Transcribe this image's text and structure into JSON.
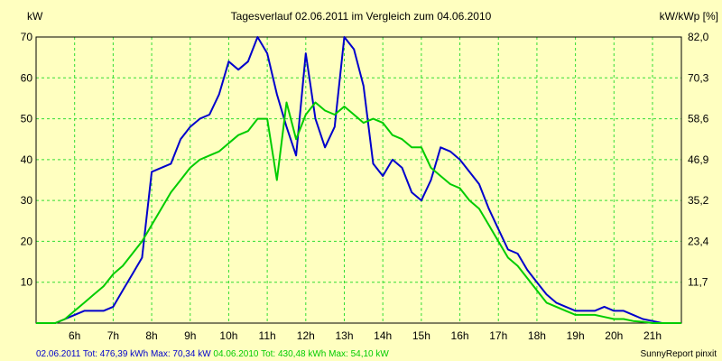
{
  "chart_data": {
    "type": "line",
    "title": "Tagesverlauf 02.06.2011 im Vergleich zum 04.06.2010",
    "ylabel_left": "kW",
    "ylabel_right": "kW/kWp [%]",
    "xlim": [
      5.0,
      21.75
    ],
    "ylim": [
      0,
      70
    ],
    "y_ticks": [
      10,
      20,
      30,
      40,
      50,
      60,
      70
    ],
    "y_right_ticks": [
      "11,7",
      "23,4",
      "35,2",
      "46,9",
      "58,6",
      "70,3",
      "82,0"
    ],
    "x_ticks": [
      6,
      7,
      8,
      9,
      10,
      11,
      12,
      13,
      14,
      15,
      16,
      17,
      18,
      19,
      20,
      21
    ],
    "x_tick_labels": [
      "6h",
      "7h",
      "8h",
      "9h",
      "10h",
      "11h",
      "12h",
      "13h",
      "14h",
      "15h",
      "16h",
      "17h",
      "18h",
      "19h",
      "20h",
      "21h"
    ],
    "grid": true,
    "series": [
      {
        "name": "02.06.2011",
        "color": "#0000cc",
        "x": [
          5.0,
          5.5,
          5.75,
          6.0,
          6.25,
          6.5,
          6.75,
          7.0,
          7.25,
          7.5,
          7.75,
          8.0,
          8.25,
          8.5,
          8.75,
          9.0,
          9.25,
          9.5,
          9.75,
          10.0,
          10.25,
          10.5,
          10.75,
          11.0,
          11.25,
          11.5,
          11.75,
          12.0,
          12.25,
          12.5,
          12.75,
          13.0,
          13.25,
          13.5,
          13.75,
          14.0,
          14.25,
          14.5,
          14.75,
          15.0,
          15.25,
          15.5,
          15.75,
          16.0,
          16.25,
          16.5,
          16.75,
          17.0,
          17.25,
          17.5,
          17.75,
          18.0,
          18.25,
          18.5,
          18.75,
          19.0,
          19.25,
          19.5,
          19.75,
          20.0,
          20.25,
          20.5,
          20.75,
          21.0,
          21.25,
          21.5,
          21.75
        ],
        "y": [
          0,
          0,
          1,
          2,
          3,
          3,
          3,
          4,
          8,
          12,
          16,
          37,
          38,
          39,
          45,
          48,
          50,
          51,
          56,
          64,
          62,
          64,
          70,
          66,
          56,
          48,
          41,
          66,
          50,
          43,
          48,
          70,
          67,
          58,
          39,
          36,
          40,
          38,
          32,
          30,
          35,
          43,
          42,
          40,
          37,
          34,
          28,
          23,
          18,
          17,
          13,
          10,
          7,
          5,
          4,
          3,
          3,
          3,
          4,
          3,
          3,
          2,
          1,
          0.5,
          0,
          0,
          0
        ]
      },
      {
        "name": "04.06.2010",
        "color": "#00cc00",
        "x": [
          5.0,
          5.5,
          5.75,
          6.0,
          6.25,
          6.5,
          6.75,
          7.0,
          7.25,
          7.5,
          7.75,
          8.0,
          8.25,
          8.5,
          8.75,
          9.0,
          9.25,
          9.5,
          9.75,
          10.0,
          10.25,
          10.5,
          10.75,
          11.0,
          11.25,
          11.5,
          11.75,
          12.0,
          12.25,
          12.5,
          12.75,
          13.0,
          13.25,
          13.5,
          13.75,
          14.0,
          14.25,
          14.5,
          14.75,
          15.0,
          15.25,
          15.5,
          15.75,
          16.0,
          16.25,
          16.5,
          16.75,
          17.0,
          17.25,
          17.5,
          17.75,
          18.0,
          18.25,
          18.5,
          18.75,
          19.0,
          19.25,
          19.5,
          19.75,
          20.0,
          20.25,
          20.5,
          20.75,
          21.0,
          21.25,
          21.5,
          21.75
        ],
        "y": [
          0,
          0,
          1,
          3,
          5,
          7,
          9,
          12,
          14,
          17,
          20,
          24,
          28,
          32,
          35,
          38,
          40,
          41,
          42,
          44,
          46,
          47,
          50,
          50,
          35,
          54,
          45,
          51,
          54,
          52,
          51,
          53,
          51,
          49,
          50,
          49,
          46,
          45,
          43,
          43,
          38,
          36,
          34,
          33,
          30,
          28,
          24,
          20,
          16,
          14,
          11,
          8,
          5,
          4,
          3,
          2,
          2,
          2,
          1.5,
          1,
          1,
          0.5,
          0.3,
          0,
          0,
          0,
          0
        ]
      }
    ]
  },
  "footer": {
    "a_date": "02.06.2011",
    "a_stats": " Tot: 476,39 kWh Max: 70,34 kW",
    "b_date": "04.06.2010",
    "b_stats": " Tot: 430,48 kWh Max: 54,10 kW",
    "brand": "SunnyReport pinxit",
    "color_a": "#0000cc",
    "color_b": "#00cc00"
  }
}
